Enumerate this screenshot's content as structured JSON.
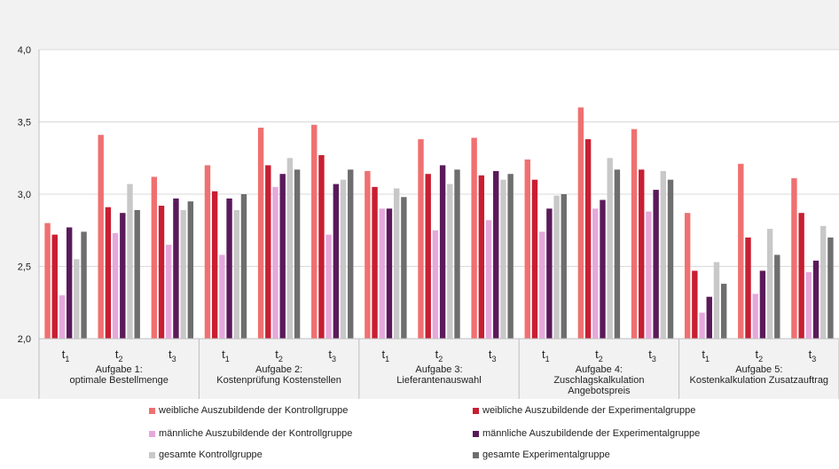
{
  "chart_data": {
    "type": "bar",
    "ylim": [
      2.0,
      4.0
    ],
    "yticks": [
      "2,0",
      "2,5",
      "3,0",
      "3,5",
      "4,0"
    ],
    "groups": [
      {
        "label_line1": "Aufgabe 1:",
        "label_line2": "optimale Bestellmenge",
        "label_line3": ""
      },
      {
        "label_line1": "Aufgabe 2:",
        "label_line2": "Kostenprüfung Kostenstellen",
        "label_line3": ""
      },
      {
        "label_line1": "Aufgabe 3:",
        "label_line2": "Lieferantenauswahl",
        "label_line3": ""
      },
      {
        "label_line1": "Aufgabe 4:",
        "label_line2": "Zuschlagskalkulation",
        "label_line3": "Angebotspreis"
      },
      {
        "label_line1": "Aufgabe 5:",
        "label_line2": "Kostenkalkulation Zusatzauftrag",
        "label_line3": ""
      }
    ],
    "time_points": [
      {
        "base": "t",
        "sub": "1"
      },
      {
        "base": "t",
        "sub": "2"
      },
      {
        "base": "t",
        "sub": "3"
      }
    ],
    "series": [
      {
        "name": "weibliche Auszubildende der Kontrollgruppe",
        "color": "#f07070",
        "values": [
          2.8,
          3.41,
          3.12,
          3.2,
          3.46,
          3.48,
          3.16,
          3.38,
          3.39,
          3.24,
          3.6,
          3.45,
          2.87,
          3.21,
          3.11
        ]
      },
      {
        "name": "weibliche Auszubildende der Experimentalgruppe",
        "color": "#c81e32",
        "values": [
          2.72,
          2.91,
          2.92,
          3.02,
          3.2,
          3.27,
          3.05,
          3.14,
          3.13,
          3.1,
          3.38,
          3.17,
          2.47,
          2.7,
          2.87
        ]
      },
      {
        "name": "männliche Auszubildende der Kontrollgruppe",
        "color": "#e6a8dc",
        "values": [
          2.3,
          2.73,
          2.65,
          2.58,
          3.05,
          2.72,
          2.9,
          2.75,
          2.82,
          2.74,
          2.9,
          2.88,
          2.18,
          2.31,
          2.46
        ]
      },
      {
        "name": "männliche Auszubildende der Experimentalgruppe",
        "color": "#5a1a5a",
        "values": [
          2.77,
          2.87,
          2.97,
          2.97,
          3.14,
          3.07,
          2.9,
          3.2,
          3.16,
          2.9,
          2.96,
          3.03,
          2.29,
          2.47,
          2.54
        ]
      },
      {
        "name": "gesamte Kontrollgruppe",
        "color": "#c8c8c8",
        "values": [
          2.55,
          3.07,
          2.89,
          2.89,
          3.25,
          3.1,
          3.04,
          3.07,
          3.1,
          2.99,
          3.25,
          3.16,
          2.53,
          2.76,
          2.78
        ]
      },
      {
        "name": "gesamte Experimentalgruppe",
        "color": "#6e6e6e",
        "values": [
          2.74,
          2.89,
          2.95,
          3.0,
          3.17,
          3.17,
          2.98,
          3.17,
          3.14,
          3.0,
          3.17,
          3.1,
          2.38,
          2.58,
          2.7
        ]
      }
    ]
  }
}
